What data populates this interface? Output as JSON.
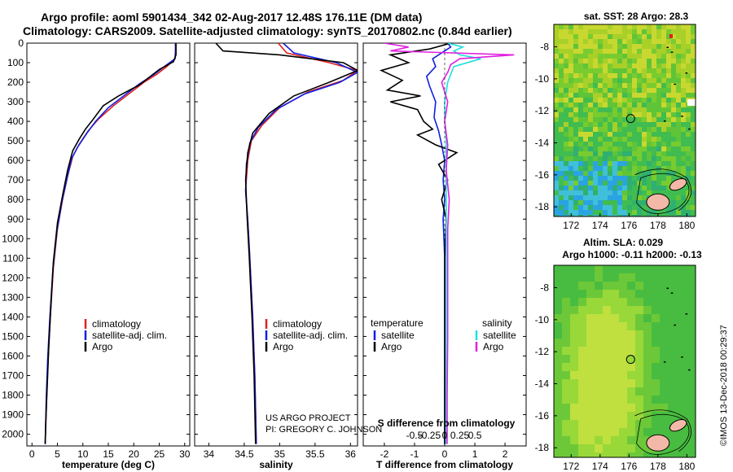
{
  "titles": {
    "line1": "Argo profile: aoml 5901434_342 02-Aug-2017 12.48S 176.11E (DM data)",
    "line2": "Climatology: CARS2009. Satellite-adjusted climatology: synTS_20170802.nc (0.84d earlier)"
  },
  "footer_credit": "©IMOS 13-Dec-2018 00:29:37",
  "project": {
    "line1": "US ARGO PROJECT",
    "line2": "PI: GREGORY C. JOHNSON"
  },
  "colors": {
    "climatology": "#e02020",
    "satellite": "#1020e0",
    "argo": "#000000",
    "sat_salinity": "#20e0e0",
    "argo_salinity": "#e020e0"
  },
  "chart_data": [
    {
      "type": "line",
      "id": "temperature",
      "xlabel": "temperature (deg C)",
      "ylabel": "",
      "xlim": [
        -1,
        31
      ],
      "ylim": [
        2060,
        0
      ],
      "xticks": [
        0,
        5,
        10,
        15,
        20,
        25,
        30
      ],
      "xtick_labels": [
        "0",
        "5",
        "10",
        "15",
        "20",
        "25",
        "30"
      ],
      "yticks": [
        0,
        100,
        200,
        300,
        400,
        500,
        600,
        700,
        800,
        900,
        1000,
        1100,
        1200,
        1300,
        1400,
        1500,
        1600,
        1700,
        1800,
        1900,
        2000
      ],
      "legend": [
        "climatology",
        "satellite-adj. clim.",
        "Argo"
      ],
      "series": [
        {
          "name": "climatology",
          "color": "red",
          "points": [
            [
              28.2,
              0
            ],
            [
              28.2,
              40
            ],
            [
              28.1,
              80
            ],
            [
              26.5,
              120
            ],
            [
              24.5,
              160
            ],
            [
              22,
              200
            ],
            [
              19,
              260
            ],
            [
              16,
              320
            ],
            [
              13,
              390
            ],
            [
              11,
              450
            ],
            [
              9.2,
              520
            ],
            [
              8,
              580
            ],
            [
              7,
              680
            ],
            [
              6,
              800
            ],
            [
              5,
              950
            ],
            [
              4.2,
              1150
            ],
            [
              3.6,
              1400
            ],
            [
              3.2,
              1600
            ],
            [
              2.9,
              1800
            ],
            [
              2.6,
              2050
            ]
          ]
        },
        {
          "name": "satellite-adj. clim.",
          "color": "blue",
          "points": [
            [
              28.2,
              0
            ],
            [
              28.2,
              40
            ],
            [
              28.1,
              80
            ],
            [
              26,
              120
            ],
            [
              24,
              160
            ],
            [
              21,
              210
            ],
            [
              18,
              270
            ],
            [
              15,
              330
            ],
            [
              12.5,
              400
            ],
            [
              10.8,
              460
            ],
            [
              9,
              530
            ],
            [
              7.8,
              590
            ],
            [
              6.9,
              690
            ],
            [
              5.9,
              810
            ],
            [
              4.9,
              960
            ],
            [
              4.1,
              1160
            ],
            [
              3.5,
              1410
            ],
            [
              3.1,
              1610
            ],
            [
              2.8,
              1810
            ],
            [
              2.6,
              2050
            ]
          ]
        },
        {
          "name": "Argo",
          "color": "black",
          "points": [
            [
              28.3,
              0
            ],
            [
              28.3,
              60
            ],
            [
              27.8,
              95
            ],
            [
              25,
              135
            ],
            [
              23,
              175
            ],
            [
              21,
              215
            ],
            [
              17,
              270
            ],
            [
              14,
              320
            ],
            [
              12,
              390
            ],
            [
              10.5,
              440
            ],
            [
              9.3,
              490
            ],
            [
              8,
              550
            ],
            [
              7,
              650
            ],
            [
              6,
              780
            ],
            [
              5,
              920
            ],
            [
              4.2,
              1120
            ],
            [
              3.7,
              1350
            ],
            [
              3.3,
              1550
            ],
            [
              3,
              1750
            ],
            [
              2.7,
              1950
            ],
            [
              2.6,
              2050
            ]
          ]
        }
      ]
    },
    {
      "type": "line",
      "id": "salinity",
      "xlabel": "salinity",
      "ylabel": "",
      "xlim": [
        33.8,
        36.1
      ],
      "ylim": [
        2060,
        0
      ],
      "xticks": [
        34,
        34.5,
        35,
        35.5,
        36
      ],
      "xtick_labels": [
        "34",
        "34.5",
        "35",
        "35.5",
        "36"
      ],
      "legend": [
        "climatology",
        "satellite-adj. clim.",
        "Argo"
      ],
      "series": [
        {
          "name": "climatology",
          "color": "red",
          "points": [
            [
              34.98,
              0
            ],
            [
              35.1,
              50
            ],
            [
              35.7,
              100
            ],
            [
              36.1,
              140
            ],
            [
              35.9,
              190
            ],
            [
              35.4,
              250
            ],
            [
              35.0,
              330
            ],
            [
              34.75,
              420
            ],
            [
              34.6,
              500
            ],
            [
              34.55,
              600
            ],
            [
              34.52,
              750
            ],
            [
              34.55,
              900
            ],
            [
              34.58,
              1100
            ],
            [
              34.62,
              1400
            ],
            [
              34.65,
              1700
            ],
            [
              34.67,
              2050
            ]
          ]
        },
        {
          "name": "satellite-adj. clim.",
          "color": "blue",
          "points": [
            [
              35.05,
              0
            ],
            [
              35.2,
              50
            ],
            [
              35.8,
              100
            ],
            [
              36.1,
              150
            ],
            [
              35.85,
              200
            ],
            [
              35.35,
              260
            ],
            [
              34.95,
              340
            ],
            [
              34.7,
              430
            ],
            [
              34.58,
              510
            ],
            [
              34.53,
              620
            ],
            [
              34.52,
              760
            ],
            [
              34.55,
              910
            ],
            [
              34.58,
              1110
            ],
            [
              34.62,
              1410
            ],
            [
              34.65,
              1710
            ],
            [
              34.67,
              2050
            ]
          ]
        },
        {
          "name": "Argo",
          "color": "black",
          "points": [
            [
              34.1,
              0
            ],
            [
              34.2,
              40
            ],
            [
              35.0,
              60
            ],
            [
              35.9,
              100
            ],
            [
              36.1,
              140
            ],
            [
              35.7,
              200
            ],
            [
              35.2,
              270
            ],
            [
              34.85,
              360
            ],
            [
              34.62,
              460
            ],
            [
              34.55,
              560
            ],
            [
              34.52,
              700
            ],
            [
              34.54,
              880
            ],
            [
              34.57,
              1090
            ],
            [
              34.61,
              1400
            ],
            [
              34.64,
              1700
            ],
            [
              34.66,
              2050
            ]
          ]
        }
      ]
    },
    {
      "type": "line",
      "id": "difference",
      "xlabel": "T difference from climatology",
      "xlabel_top": "S difference from climatology",
      "xlim": [
        -2.7,
        2.7
      ],
      "ylim": [
        2060,
        0
      ],
      "xticks": [
        -2,
        -1,
        0,
        1,
        2
      ],
      "xtick_labels": [
        "-2",
        "-1",
        "0",
        "1",
        "2"
      ],
      "sticks": [
        -0.5,
        -0.25,
        0,
        0.25,
        0.5
      ],
      "stick_labels": [
        "-0.5",
        "-0.25",
        "0",
        "0.25",
        "0.5"
      ],
      "legend_temperature_title": "temperature",
      "legend_salinity_title": "salinity",
      "legend_temperature": [
        "satellite",
        "Argo"
      ],
      "legend_salinity": [
        "satellite",
        "Argo"
      ],
      "series": [
        {
          "name": "T satellite",
          "color": "blue",
          "points": [
            [
              0.1,
              0
            ],
            [
              0.2,
              20
            ],
            [
              -0.4,
              80
            ],
            [
              -0.3,
              120
            ],
            [
              -0.6,
              170
            ],
            [
              -0.5,
              220
            ],
            [
              -0.3,
              300
            ],
            [
              -0.35,
              380
            ],
            [
              -0.2,
              450
            ],
            [
              -0.1,
              520
            ],
            [
              0,
              600
            ],
            [
              -0.05,
              700
            ],
            [
              0,
              800
            ],
            [
              -0.05,
              900
            ],
            [
              0,
              1100
            ],
            [
              0,
              1400
            ],
            [
              0,
              1800
            ],
            [
              0,
              2050
            ]
          ]
        },
        {
          "name": "T Argo",
          "color": "black",
          "points": [
            [
              0.2,
              0
            ],
            [
              -0.5,
              30
            ],
            [
              -1.8,
              60
            ],
            [
              -1.2,
              100
            ],
            [
              -2.1,
              140
            ],
            [
              -1.4,
              190
            ],
            [
              -1.9,
              240
            ],
            [
              -0.8,
              270
            ],
            [
              -1.8,
              300
            ],
            [
              -0.9,
              340
            ],
            [
              -0.7,
              400
            ],
            [
              -0.4,
              440
            ],
            [
              -0.9,
              470
            ],
            [
              -0.3,
              520
            ],
            [
              0.4,
              560
            ],
            [
              -0.2,
              620
            ],
            [
              0.1,
              700
            ],
            [
              -0.1,
              800
            ],
            [
              0.05,
              900
            ],
            [
              0,
              1100
            ],
            [
              0,
              1400
            ],
            [
              0,
              1700
            ],
            [
              0,
              2050
            ]
          ]
        },
        {
          "name": "S satellite",
          "color": "cyan",
          "points": [
            [
              0.1,
              0
            ],
            [
              0.6,
              20
            ],
            [
              0.3,
              40
            ],
            [
              0.5,
              60
            ],
            [
              1.2,
              80
            ],
            [
              0.3,
              120
            ],
            [
              0.1,
              200
            ],
            [
              0,
              300
            ],
            [
              0,
              400
            ],
            [
              0.05,
              500
            ],
            [
              0.05,
              600
            ],
            [
              0.05,
              800
            ],
            [
              0.05,
              1100
            ],
            [
              0.05,
              1500
            ],
            [
              0.05,
              2050
            ]
          ]
        },
        {
          "name": "S Argo",
          "color": "magenta",
          "points": [
            [
              -2,
              0
            ],
            [
              -1.2,
              20
            ],
            [
              -1.8,
              40
            ],
            [
              2.3,
              60
            ],
            [
              0.5,
              80
            ],
            [
              0.2,
              110
            ],
            [
              0.1,
              150
            ],
            [
              -0.1,
              200
            ],
            [
              0.1,
              300
            ],
            [
              0,
              400
            ],
            [
              0.1,
              520
            ],
            [
              0.05,
              650
            ],
            [
              0.15,
              800
            ],
            [
              0.1,
              950
            ],
            [
              0.1,
              1200
            ],
            [
              0.1,
              1500
            ],
            [
              0.08,
              1800
            ],
            [
              0.08,
              2050
            ]
          ]
        }
      ]
    },
    {
      "type": "heatmap",
      "id": "sst-map",
      "title": "sat. SST: 28 Argo: 28.3",
      "xticks": [
        172,
        174,
        176,
        178,
        180
      ],
      "yticks": [
        -8,
        -10,
        -12,
        -14,
        -16,
        -18
      ],
      "xlim": [
        170.8,
        180.6
      ],
      "ylim": [
        -18.6,
        -6.6
      ],
      "argo_position": [
        176.11,
        -12.48
      ]
    },
    {
      "type": "heatmap",
      "id": "sla-map",
      "title": "Altim. SLA: 0.029",
      "subtitle": "Argo h1000: -0.11 h2000: -0.13",
      "xticks": [
        172,
        174,
        176,
        178,
        180
      ],
      "yticks": [
        -8,
        -10,
        -12,
        -14,
        -16,
        -18
      ],
      "xlim": [
        170.8,
        180.6
      ],
      "ylim": [
        -18.6,
        -6.6
      ],
      "argo_position": [
        176.11,
        -12.48
      ]
    }
  ]
}
